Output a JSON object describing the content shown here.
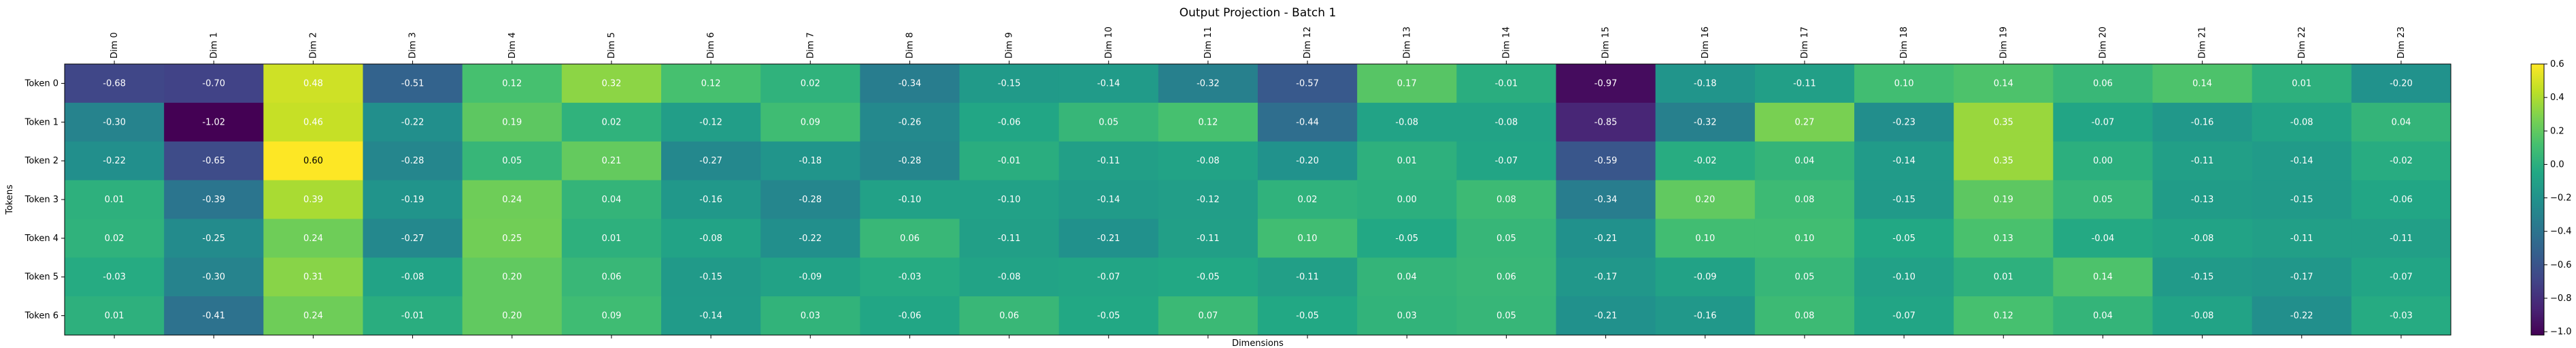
{
  "chart_data": {
    "type": "heatmap",
    "title": "Output Projection - Batch 1",
    "xlabel": "Dimensions",
    "ylabel": "Tokens",
    "colormap": "viridis",
    "x_categories": [
      "Dim 0",
      "Dim 1",
      "Dim 2",
      "Dim 3",
      "Dim 4",
      "Dim 5",
      "Dim 6",
      "Dim 7",
      "Dim 8",
      "Dim 9",
      "Dim 10",
      "Dim 11",
      "Dim 12",
      "Dim 13",
      "Dim 14",
      "Dim 15",
      "Dim 16",
      "Dim 17",
      "Dim 18",
      "Dim 19",
      "Dim 20",
      "Dim 21",
      "Dim 22",
      "Dim 23"
    ],
    "y_categories": [
      "Token 0",
      "Token 1",
      "Token 2",
      "Token 3",
      "Token 4",
      "Token 5",
      "Token 6"
    ],
    "values": [
      [
        -0.68,
        -0.7,
        0.48,
        -0.51,
        0.12,
        0.32,
        0.12,
        0.02,
        -0.34,
        -0.15,
        -0.14,
        -0.32,
        -0.57,
        0.17,
        -0.01,
        -0.97,
        -0.18,
        -0.11,
        0.1,
        0.14,
        0.06,
        0.14,
        0.01,
        -0.2
      ],
      [
        -0.3,
        -1.02,
        0.46,
        -0.22,
        0.19,
        0.02,
        -0.12,
        0.09,
        -0.26,
        -0.06,
        0.05,
        0.12,
        -0.44,
        -0.08,
        -0.08,
        -0.85,
        -0.32,
        0.27,
        -0.23,
        0.35,
        -0.07,
        -0.16,
        -0.08,
        0.04
      ],
      [
        -0.22,
        -0.65,
        0.6,
        -0.28,
        0.05,
        0.21,
        -0.27,
        -0.18,
        -0.28,
        -0.01,
        -0.11,
        -0.08,
        -0.2,
        0.01,
        -0.07,
        -0.59,
        -0.02,
        0.04,
        -0.14,
        0.35,
        -0.0,
        -0.11,
        -0.14,
        -0.02
      ],
      [
        0.01,
        -0.39,
        0.39,
        -0.19,
        0.24,
        0.04,
        -0.16,
        -0.28,
        -0.1,
        -0.1,
        -0.14,
        -0.12,
        0.02,
        0.0,
        0.08,
        -0.34,
        0.2,
        0.08,
        -0.15,
        0.19,
        0.05,
        -0.13,
        -0.15,
        -0.06
      ],
      [
        0.02,
        -0.25,
        0.24,
        -0.27,
        0.25,
        0.01,
        -0.08,
        -0.22,
        0.06,
        -0.11,
        -0.21,
        -0.11,
        0.1,
        -0.05,
        0.05,
        -0.21,
        0.1,
        0.1,
        -0.05,
        0.13,
        -0.04,
        -0.08,
        -0.11,
        -0.11
      ],
      [
        -0.03,
        -0.3,
        0.31,
        -0.08,
        0.2,
        0.06,
        -0.15,
        -0.09,
        -0.03,
        -0.08,
        -0.07,
        -0.05,
        -0.11,
        0.04,
        0.06,
        -0.17,
        -0.09,
        0.05,
        -0.1,
        0.01,
        0.14,
        -0.15,
        -0.17,
        -0.07
      ],
      [
        0.01,
        -0.41,
        0.24,
        -0.01,
        0.2,
        0.09,
        -0.14,
        0.03,
        -0.06,
        0.06,
        -0.05,
        0.07,
        -0.05,
        0.03,
        0.05,
        -0.21,
        -0.16,
        0.08,
        -0.07,
        0.12,
        0.04,
        -0.08,
        -0.22,
        -0.03
      ]
    ],
    "vmin": -1.02,
    "vmax": 0.6,
    "colorbar_ticks": [
      0.6,
      0.4,
      0.2,
      0.0,
      -0.2,
      -0.4,
      -0.6,
      -0.8,
      -1.0
    ],
    "colorbar_tick_labels": [
      "0.6",
      "0.4",
      "0.2",
      "0.0",
      "−0.2",
      "−0.4",
      "−0.6",
      "−0.8",
      "−1.0"
    ],
    "grid": false,
    "legend": "colorbar-right"
  }
}
